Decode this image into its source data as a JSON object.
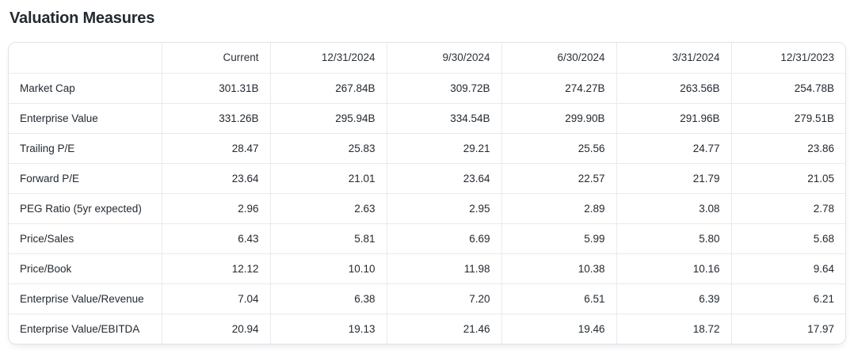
{
  "page": {
    "title": "Valuation Measures"
  },
  "colors": {
    "title_text": "#232a31",
    "cell_text": "#232a31",
    "table_outer_border": "#dfe3e8",
    "table_inner_border": "#e7eaee",
    "background": "#ffffff"
  },
  "table": {
    "columns": [
      "",
      "Current",
      "12/31/2024",
      "9/30/2024",
      "6/30/2024",
      "3/31/2024",
      "12/31/2023"
    ],
    "rows": [
      {
        "label": "Market Cap",
        "values": [
          "301.31B",
          "267.84B",
          "309.72B",
          "274.27B",
          "263.56B",
          "254.78B"
        ]
      },
      {
        "label": "Enterprise Value",
        "values": [
          "331.26B",
          "295.94B",
          "334.54B",
          "299.90B",
          "291.96B",
          "279.51B"
        ]
      },
      {
        "label": "Trailing P/E",
        "values": [
          "28.47",
          "25.83",
          "29.21",
          "25.56",
          "24.77",
          "23.86"
        ]
      },
      {
        "label": "Forward P/E",
        "values": [
          "23.64",
          "21.01",
          "23.64",
          "22.57",
          "21.79",
          "21.05"
        ]
      },
      {
        "label": "PEG Ratio (5yr expected)",
        "values": [
          "2.96",
          "2.63",
          "2.95",
          "2.89",
          "3.08",
          "2.78"
        ]
      },
      {
        "label": "Price/Sales",
        "values": [
          "6.43",
          "5.81",
          "6.69",
          "5.99",
          "5.80",
          "5.68"
        ]
      },
      {
        "label": "Price/Book",
        "values": [
          "12.12",
          "10.10",
          "11.98",
          "10.38",
          "10.16",
          "9.64"
        ]
      },
      {
        "label": "Enterprise Value/Revenue",
        "values": [
          "7.04",
          "6.38",
          "7.20",
          "6.51",
          "6.39",
          "6.21"
        ]
      },
      {
        "label": "Enterprise Value/EBITDA",
        "values": [
          "20.94",
          "19.13",
          "21.46",
          "19.46",
          "18.72",
          "17.97"
        ]
      }
    ]
  }
}
